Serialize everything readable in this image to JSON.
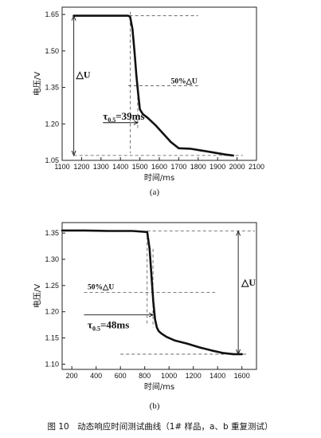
{
  "caption": "图 10　动态响应时间测试曲线（1# 样品，a、b 重复测试）",
  "chart_data": [
    {
      "type": "line",
      "panel_label": "(a)",
      "xlabel": "时间/ms",
      "ylabel": "电压/V",
      "xlim": [
        1100,
        2100
      ],
      "ylim": [
        1.05,
        1.68
      ],
      "xticks": [
        1100,
        1200,
        1300,
        1400,
        1500,
        1600,
        1700,
        1800,
        1900,
        2000,
        2100
      ],
      "yticks": [
        1.05,
        1.2,
        1.35,
        1.5,
        1.65
      ],
      "grid": false,
      "series": [
        {
          "x": [
            1160,
            1250,
            1350,
            1440,
            1450,
            1462,
            1472,
            1482,
            1492,
            1500,
            1515,
            1540,
            1580,
            1620,
            1660,
            1700,
            1760,
            1820,
            1880,
            1940,
            1980
          ],
          "y": [
            1.645,
            1.645,
            1.645,
            1.645,
            1.64,
            1.59,
            1.5,
            1.4,
            1.32,
            1.26,
            1.24,
            1.225,
            1.195,
            1.16,
            1.125,
            1.1,
            1.098,
            1.09,
            1.082,
            1.074,
            1.07
          ]
        }
      ],
      "annotations": {
        "delta_u": "△U",
        "half_delta_u": "50%△U",
        "tau_main": "τ",
        "tau_sub": "0.5",
        "tau_value": "=39ms"
      }
    },
    {
      "type": "line",
      "panel_label": "(b)",
      "xlabel": "时间/ms",
      "ylabel": "电压/V",
      "xlim": [
        120,
        1720
      ],
      "ylim": [
        1.09,
        1.37
      ],
      "xticks": [
        200,
        400,
        600,
        800,
        1000,
        1200,
        1400,
        1600
      ],
      "yticks": [
        1.1,
        1.15,
        1.2,
        1.25,
        1.3,
        1.35
      ],
      "grid": false,
      "series": [
        {
          "x": [
            120,
            300,
            500,
            700,
            820,
            840,
            855,
            870,
            885,
            900,
            915,
            940,
            980,
            1050,
            1150,
            1250,
            1350,
            1450,
            1530,
            1600
          ],
          "y": [
            1.355,
            1.355,
            1.354,
            1.354,
            1.352,
            1.32,
            1.27,
            1.22,
            1.185,
            1.17,
            1.163,
            1.158,
            1.152,
            1.145,
            1.139,
            1.132,
            1.126,
            1.121,
            1.119,
            1.119
          ]
        }
      ],
      "annotations": {
        "delta_u": "△U",
        "half_delta_u": "50%△U",
        "tau_main": "τ",
        "tau_sub": "0.5",
        "tau_value": "=48ms"
      }
    }
  ]
}
